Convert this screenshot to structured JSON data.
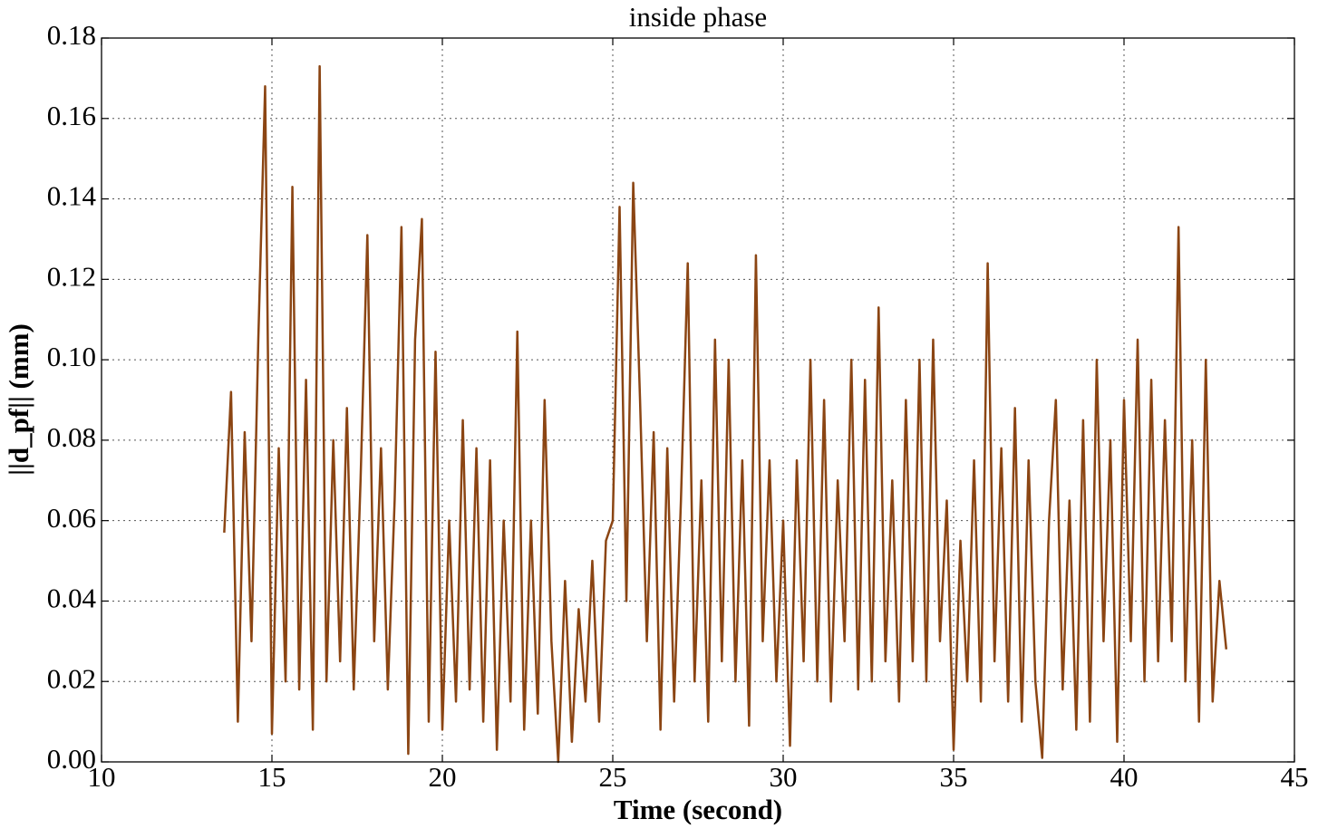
{
  "chart_data": {
    "type": "line",
    "title": "inside phase",
    "x_label": "Time (second)",
    "y_label": "||d_pf|| (mm)",
    "color": "#8b4513",
    "grid": true,
    "xlim": [
      10,
      45
    ],
    "xticks": [
      10,
      15,
      20,
      25,
      30,
      35,
      40,
      45
    ],
    "ylim": [
      0,
      0.18
    ],
    "yticks": [
      {
        "value": 0,
        "label": "0.00"
      },
      {
        "value": 0.02,
        "label": "0.02"
      },
      {
        "value": 0.04,
        "label": "0.04"
      },
      {
        "value": 0.06,
        "label": "0.06"
      },
      {
        "value": 0.08,
        "label": "0.08"
      },
      {
        "value": 0.1,
        "label": "0.10"
      },
      {
        "value": 0.12,
        "label": "0.12"
      },
      {
        "value": 0.14,
        "label": "0.14"
      },
      {
        "value": 0.16,
        "label": "0.16"
      },
      {
        "value": 0.18,
        "label": "0.18"
      }
    ],
    "x": [
      13.6,
      13.8,
      14.0,
      14.2,
      14.4,
      14.6,
      14.8,
      15.0,
      15.2,
      15.4,
      15.6,
      15.8,
      16.0,
      16.2,
      16.4,
      16.6,
      16.8,
      17.0,
      17.2,
      17.4,
      17.6,
      17.8,
      18.0,
      18.2,
      18.4,
      18.6,
      18.8,
      19.0,
      19.2,
      19.4,
      19.6,
      19.8,
      20.0,
      20.2,
      20.4,
      20.6,
      20.8,
      21.0,
      21.2,
      21.4,
      21.6,
      21.8,
      22.0,
      22.2,
      22.4,
      22.6,
      22.8,
      23.0,
      23.2,
      23.4,
      23.6,
      23.8,
      24.0,
      24.2,
      24.4,
      24.6,
      24.8,
      25.0,
      25.2,
      25.4,
      25.6,
      25.8,
      26.0,
      26.2,
      26.4,
      26.6,
      26.8,
      27.0,
      27.2,
      27.4,
      27.6,
      27.8,
      28.0,
      28.2,
      28.4,
      28.6,
      28.8,
      29.0,
      29.2,
      29.4,
      29.6,
      29.8,
      30.0,
      30.2,
      30.4,
      30.6,
      30.8,
      31.0,
      31.2,
      31.4,
      31.6,
      31.8,
      32.0,
      32.2,
      32.4,
      32.6,
      32.8,
      33.0,
      33.2,
      33.4,
      33.6,
      33.8,
      34.0,
      34.2,
      34.4,
      34.6,
      34.8,
      35.0,
      35.2,
      35.4,
      35.6,
      35.8,
      36.0,
      36.2,
      36.4,
      36.6,
      36.8,
      37.0,
      37.2,
      37.4,
      37.6,
      37.8,
      38.0,
      38.2,
      38.4,
      38.6,
      38.8,
      39.0,
      39.2,
      39.4,
      39.6,
      39.8,
      40.0,
      40.2,
      40.4,
      40.6,
      40.8,
      41.0,
      41.2,
      41.4,
      41.6,
      41.8,
      42.0,
      42.2,
      42.4,
      42.6,
      42.8,
      43.0
    ],
    "values": [
      0.057,
      0.092,
      0.01,
      0.082,
      0.03,
      0.105,
      0.168,
      0.007,
      0.078,
      0.02,
      0.143,
      0.018,
      0.095,
      0.008,
      0.173,
      0.02,
      0.08,
      0.025,
      0.088,
      0.018,
      0.07,
      0.131,
      0.03,
      0.078,
      0.018,
      0.065,
      0.133,
      0.002,
      0.105,
      0.135,
      0.01,
      0.102,
      0.008,
      0.06,
      0.015,
      0.085,
      0.018,
      0.078,
      0.01,
      0.075,
      0.003,
      0.06,
      0.015,
      0.107,
      0.008,
      0.06,
      0.012,
      0.09,
      0.03,
      0.0,
      0.045,
      0.005,
      0.038,
      0.015,
      0.05,
      0.01,
      0.055,
      0.06,
      0.138,
      0.04,
      0.144,
      0.09,
      0.03,
      0.082,
      0.008,
      0.078,
      0.015,
      0.065,
      0.124,
      0.02,
      0.07,
      0.01,
      0.105,
      0.025,
      0.1,
      0.02,
      0.075,
      0.009,
      0.126,
      0.03,
      0.075,
      0.02,
      0.06,
      0.004,
      0.075,
      0.025,
      0.1,
      0.02,
      0.09,
      0.015,
      0.07,
      0.03,
      0.1,
      0.018,
      0.095,
      0.02,
      0.113,
      0.025,
      0.07,
      0.015,
      0.09,
      0.025,
      0.1,
      0.02,
      0.105,
      0.03,
      0.065,
      0.003,
      0.055,
      0.02,
      0.075,
      0.015,
      0.124,
      0.025,
      0.078,
      0.015,
      0.088,
      0.01,
      0.075,
      0.02,
      0.001,
      0.06,
      0.09,
      0.018,
      0.065,
      0.008,
      0.085,
      0.01,
      0.1,
      0.03,
      0.08,
      0.005,
      0.09,
      0.03,
      0.105,
      0.02,
      0.095,
      0.025,
      0.085,
      0.03,
      0.133,
      0.02,
      0.08,
      0.01,
      0.1,
      0.015,
      0.045,
      0.028
    ]
  }
}
